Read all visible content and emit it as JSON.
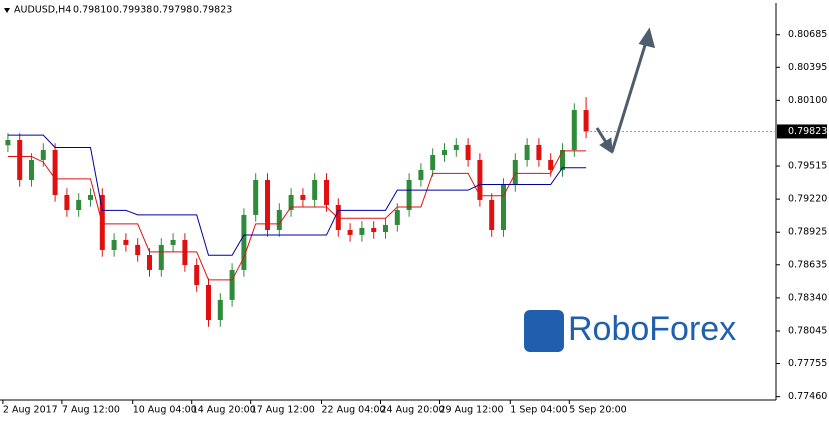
{
  "header": {
    "symbol": "AUDUSD,H4",
    "ohlc": [
      "0.79810",
      "0.79938",
      "0.79798",
      "0.79823"
    ]
  },
  "logo": "RoboForex",
  "chart_data": {
    "type": "candlestick",
    "categories": [
      "2 Aug 2017",
      null,
      null,
      null,
      null,
      "7 Aug 12:00",
      null,
      null,
      null,
      null,
      null,
      "10 Aug 04:00",
      null,
      null,
      null,
      null,
      "14 Aug 20:00",
      null,
      null,
      null,
      null,
      "17 Aug 12:00",
      null,
      null,
      null,
      null,
      null,
      "22 Aug 04:00",
      null,
      null,
      null,
      null,
      "24 Aug 20:00",
      null,
      null,
      null,
      null,
      "29 Aug 12:00",
      null,
      null,
      null,
      null,
      null,
      "1 Sep 04:00",
      null,
      null,
      null,
      null,
      "5 Sep 20:00",
      null
    ],
    "open": [
      0.797,
      0.79747,
      0.79391,
      0.79569,
      0.79658,
      0.79257,
      0.79123,
      0.79213,
      0.79257,
      0.78767,
      0.78856,
      0.78812,
      0.78722,
      0.78589,
      0.78812,
      0.78856,
      0.78633,
      0.78455,
      0.78143,
      0.78322,
      0.78589,
      0.79079,
      0.79391,
      0.78945,
      0.79123,
      0.79257,
      0.79213,
      0.79391,
      0.79168,
      0.78945,
      0.78901,
      0.78963,
      0.78927,
      0.7899,
      0.79123,
      0.79391,
      0.7948,
      0.79613,
      0.79658,
      0.79703,
      0.79569,
      0.79213,
      0.78945,
      0.79346,
      0.79569,
      0.79703,
      0.79569,
      0.7948,
      0.79658,
      0.80014
    ],
    "high": [
      0.79807,
      0.79807,
      0.79629,
      0.79718,
      0.79718,
      0.79317,
      0.79273,
      0.79317,
      0.79317,
      0.78916,
      0.78916,
      0.78872,
      0.78782,
      0.78872,
      0.78916,
      0.78916,
      0.78693,
      0.78515,
      0.78382,
      0.78649,
      0.79139,
      0.79451,
      0.79451,
      0.79183,
      0.79317,
      0.79317,
      0.79451,
      0.79451,
      0.79228,
      0.79005,
      0.79023,
      0.79023,
      0.7905,
      0.79183,
      0.79451,
      0.7954,
      0.79673,
      0.79718,
      0.79763,
      0.79763,
      0.79629,
      0.79273,
      0.79406,
      0.79629,
      0.79763,
      0.79763,
      0.79629,
      0.79718,
      0.80074,
      0.8013
    ],
    "low": [
      0.7964,
      0.79331,
      0.79331,
      0.79509,
      0.79197,
      0.79063,
      0.79063,
      0.79153,
      0.78707,
      0.78707,
      0.78752,
      0.78662,
      0.78529,
      0.78529,
      0.78752,
      0.78573,
      0.78395,
      0.78083,
      0.78083,
      0.78262,
      0.78529,
      0.79019,
      0.78885,
      0.78885,
      0.79063,
      0.79153,
      0.79153,
      0.79108,
      0.78885,
      0.78841,
      0.78841,
      0.78867,
      0.78867,
      0.7893,
      0.79063,
      0.79331,
      0.7942,
      0.79553,
      0.79598,
      0.79509,
      0.79153,
      0.78885,
      0.78885,
      0.79286,
      0.79509,
      0.79509,
      0.7942,
      0.7942,
      0.79598,
      0.79763
    ],
    "close": [
      0.79747,
      0.79391,
      0.79569,
      0.79658,
      0.79257,
      0.79123,
      0.79213,
      0.79257,
      0.78767,
      0.78856,
      0.78812,
      0.78722,
      0.78589,
      0.78812,
      0.78856,
      0.78633,
      0.78455,
      0.78143,
      0.78322,
      0.78589,
      0.79079,
      0.79391,
      0.78945,
      0.79123,
      0.79257,
      0.79213,
      0.79391,
      0.79168,
      0.78945,
      0.78901,
      0.78963,
      0.78927,
      0.7899,
      0.79123,
      0.79391,
      0.7948,
      0.79613,
      0.79658,
      0.79703,
      0.79569,
      0.79213,
      0.78945,
      0.79346,
      0.79569,
      0.79703,
      0.79569,
      0.7948,
      0.79658,
      0.80014,
      0.79823
    ],
    "up_color": "#2e8b3a",
    "down_color": "#e01010",
    "lines": [
      {
        "color": "#e01010",
        "values": [
          0.796,
          0.796,
          0.796,
          0.7955,
          0.794,
          0.794,
          0.794,
          0.794,
          0.79,
          0.79,
          0.79,
          0.79,
          0.7875,
          0.7875,
          0.7875,
          0.7875,
          0.7875,
          0.785,
          0.785,
          0.785,
          0.787,
          0.79,
          0.79,
          0.79,
          0.7915,
          0.7915,
          0.7915,
          0.7915,
          0.7905,
          0.7905,
          0.7905,
          0.7905,
          0.7905,
          0.7915,
          0.7915,
          0.7915,
          0.7945,
          0.7945,
          0.7945,
          0.7945,
          0.7925,
          0.7925,
          0.7925,
          0.7945,
          0.7945,
          0.7945,
          0.7945,
          0.7965,
          0.7965,
          0.7965
        ]
      },
      {
        "color": "#0000a0",
        "values": [
          0.7979,
          0.7979,
          0.7979,
          0.7979,
          0.7968,
          0.7968,
          0.7968,
          0.7968,
          0.7912,
          0.7912,
          0.7912,
          0.7908,
          0.7908,
          0.7908,
          0.7908,
          0.7908,
          0.7908,
          0.7872,
          0.7872,
          0.7872,
          0.789,
          0.789,
          0.789,
          0.789,
          0.789,
          0.789,
          0.789,
          0.789,
          0.7912,
          0.7912,
          0.7912,
          0.7912,
          0.7912,
          0.793,
          0.793,
          0.793,
          0.793,
          0.793,
          0.793,
          0.793,
          0.7935,
          0.7935,
          0.7935,
          0.7935,
          0.7935,
          0.7935,
          0.7935,
          0.795,
          0.795,
          0.795
        ]
      }
    ],
    "last_price": 0.79823,
    "ylim": [
      0.7743,
      0.8095
    ],
    "yticks": [
      0.80685,
      0.80395,
      {
        "value": 0.801,
        "label": "0.80100"
      },
      0.79515,
      {
        "value": 0.7922,
        "label": "0.79220"
      },
      0.78925,
      0.78635,
      {
        "value": 0.7834,
        "label": "0.78340"
      },
      0.78045,
      0.77755,
      {
        "value": 0.7746,
        "label": "0.77460"
      }
    ]
  }
}
